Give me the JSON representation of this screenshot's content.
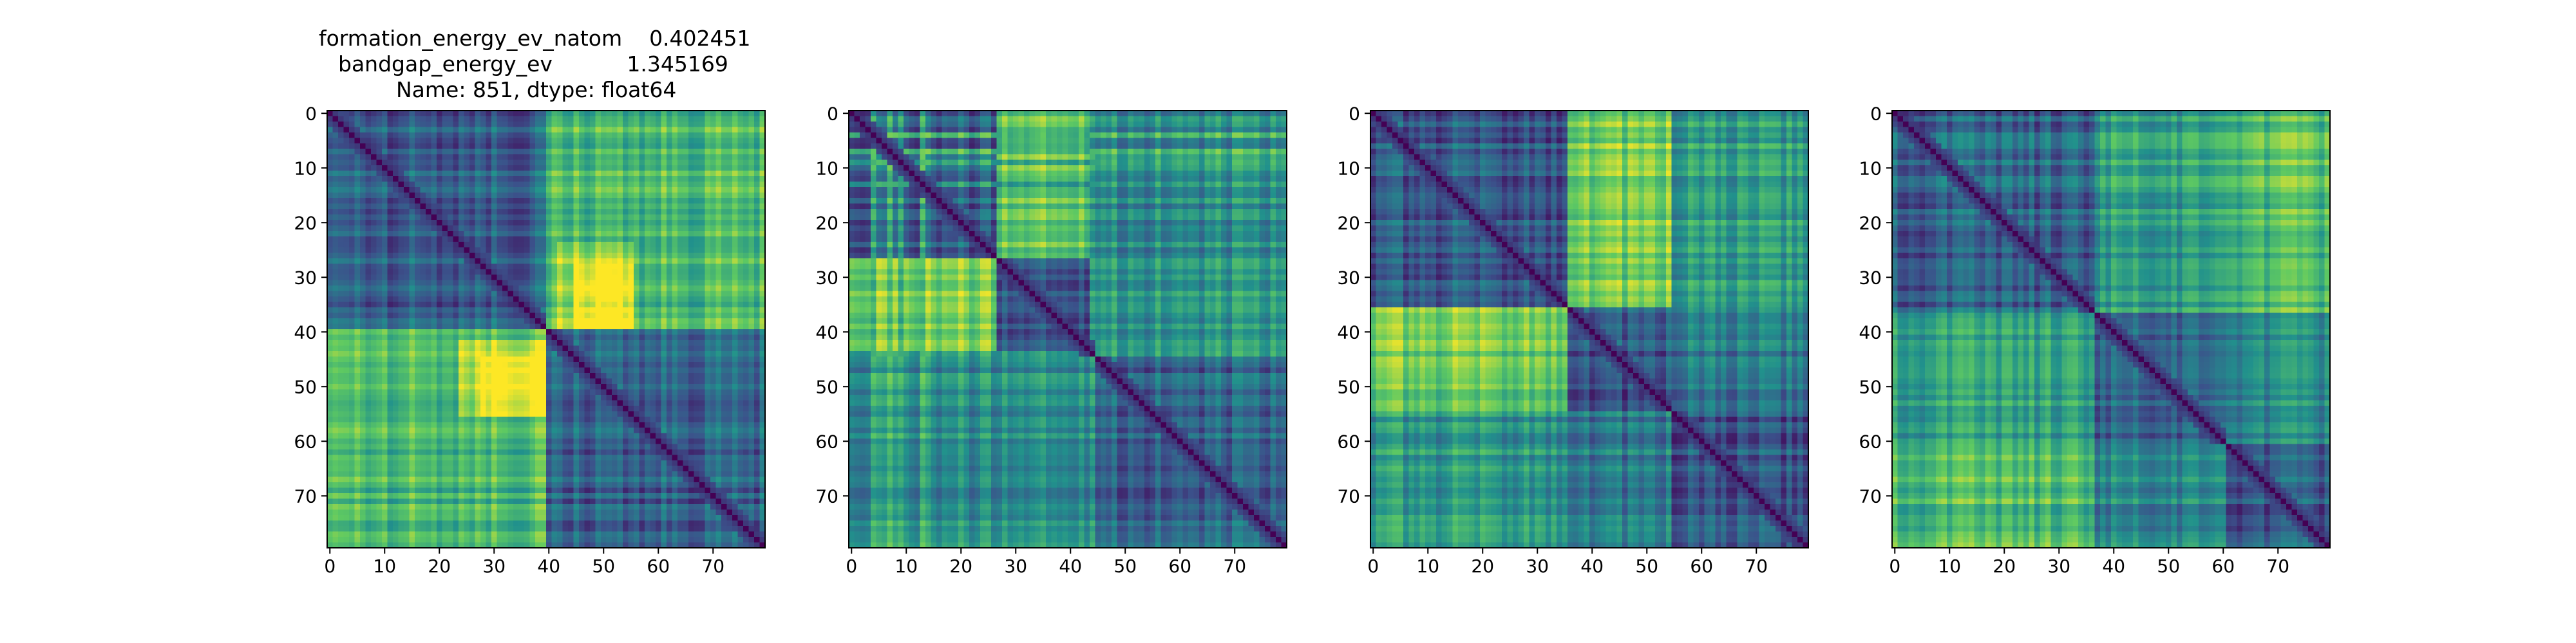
{
  "figure": {
    "title_lines": [
      "formation_energy_ev_natom    0.402451",
      "bandgap_energy_ev           1.345169",
      "Name: 851, dtype: float64"
    ]
  },
  "colormap": [
    "#440154",
    "#3b528b",
    "#21918c",
    "#5ec962",
    "#fde725"
  ],
  "chart_data": [
    {
      "type": "heatmap",
      "title": "formation_energy_ev_natom    0.402451\nbandgap_energy_ev           1.345169\nName: 851, dtype: float64",
      "size": 80,
      "xlim": [
        0,
        79
      ],
      "ylim": [
        79,
        0
      ],
      "xticks": [
        0,
        10,
        20,
        30,
        40,
        50,
        60,
        70
      ],
      "yticks": [
        0,
        10,
        20,
        30,
        40,
        50,
        60,
        70
      ],
      "blocks": [
        0,
        40,
        80
      ],
      "block_values": [
        [
          0.25,
          0.62
        ],
        [
          0.62,
          0.25
        ]
      ],
      "diagonal": 0.0,
      "peak_region": [
        [
          28,
          40,
          45,
          56
        ],
        [
          42,
          56,
          24,
          40
        ]
      ],
      "value_range": [
        0,
        1
      ],
      "grid": false,
      "legend": "none"
    },
    {
      "type": "heatmap",
      "size": 80,
      "xlim": [
        0,
        79
      ],
      "ylim": [
        79,
        0
      ],
      "xticks": [
        0,
        10,
        20,
        30,
        40,
        50,
        60,
        70
      ],
      "yticks": [
        0,
        10,
        20,
        30,
        40,
        50,
        60,
        70
      ],
      "blocks": [
        0,
        27,
        45,
        80
      ],
      "block_values": [
        [
          0.25,
          0.72,
          0.42
        ],
        [
          0.72,
          0.22,
          0.45
        ],
        [
          0.42,
          0.45,
          0.25
        ]
      ],
      "stripe_rows": [
        4,
        7,
        9,
        13,
        44
      ],
      "diagonal": 0.0,
      "value_range": [
        0,
        1
      ],
      "grid": false,
      "legend": "none"
    },
    {
      "type": "heatmap",
      "size": 80,
      "xlim": [
        0,
        79
      ],
      "ylim": [
        79,
        0
      ],
      "xticks": [
        0,
        10,
        20,
        30,
        40,
        50,
        60,
        70
      ],
      "yticks": [
        0,
        10,
        20,
        30,
        40,
        50,
        60,
        70
      ],
      "blocks": [
        0,
        36,
        55,
        80
      ],
      "block_values": [
        [
          0.22,
          0.72,
          0.48
        ],
        [
          0.72,
          0.22,
          0.35
        ],
        [
          0.48,
          0.35,
          0.2
        ]
      ],
      "diagonal": 0.0,
      "value_range": [
        0,
        1
      ],
      "grid": false,
      "legend": "none"
    },
    {
      "type": "heatmap",
      "size": 80,
      "xlim": [
        0,
        79
      ],
      "ylim": [
        79,
        0
      ],
      "xticks": [
        0,
        10,
        20,
        30,
        40,
        50,
        60,
        70
      ],
      "yticks": [
        0,
        10,
        20,
        30,
        40,
        50,
        60,
        70
      ],
      "blocks": [
        0,
        37,
        61,
        80
      ],
      "block_values": [
        [
          0.25,
          0.48,
          0.62
        ],
        [
          0.48,
          0.22,
          0.38
        ],
        [
          0.62,
          0.38,
          0.22
        ]
      ],
      "diagonal": 0.0,
      "value_range": [
        0,
        1
      ],
      "grid": false,
      "legend": "none"
    }
  ]
}
